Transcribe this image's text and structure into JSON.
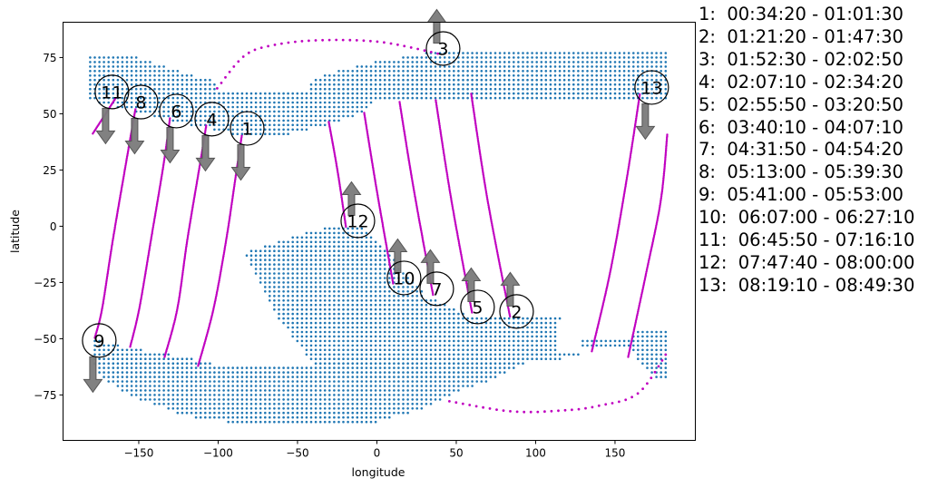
{
  "chart_data": {
    "type": "scatter",
    "title": "",
    "xlabel": "longitude",
    "ylabel": "latitude",
    "xlim": [
      -197.7,
      200.6
    ],
    "ylim": [
      -95.2,
      90.7
    ],
    "xticks": [
      -150,
      -100,
      -50,
      0,
      50,
      100,
      150
    ],
    "xtick_labels": [
      "−150",
      "−100",
      "−50",
      "0",
      "50",
      "100",
      "150"
    ],
    "yticks": [
      75,
      50,
      25,
      0,
      -25,
      -50,
      -75
    ],
    "ytick_labels": [
      "75",
      "50",
      "25",
      "0",
      "−25",
      "−50",
      "−75"
    ],
    "grid": false,
    "colors": {
      "grid_points": "#1f77b4",
      "track": "#c000c0",
      "arrow": "#7a7a7a"
    },
    "grid_points": {
      "step": [
        2.9,
        2.0
      ],
      "regions": [
        [
          [
            -181,
            77
          ],
          [
            -150,
            75
          ],
          [
            -130,
            70
          ],
          [
            -100,
            64
          ],
          [
            -100,
            60
          ],
          [
            -45,
            60
          ],
          [
            -40,
            66
          ],
          [
            -10,
            72
          ],
          [
            30,
            77
          ],
          [
            60,
            79
          ],
          [
            183,
            79
          ],
          [
            183,
            57
          ],
          [
            100,
            55
          ],
          [
            0,
            57
          ],
          [
            -8,
            50
          ],
          [
            -26,
            46
          ],
          [
            -65,
            39
          ],
          [
            -93,
            41
          ],
          [
            -123,
            46
          ],
          [
            -160,
            52
          ],
          [
            -181,
            56
          ]
        ],
        [
          [
            -84,
            -12
          ],
          [
            -40,
            -2
          ],
          [
            -31,
            0
          ],
          [
            -9,
            0
          ],
          [
            -5,
            -4
          ],
          [
            10,
            -14
          ],
          [
            31,
            -31
          ],
          [
            55,
            -39
          ],
          [
            124,
            -39
          ],
          [
            113,
            -42
          ],
          [
            113,
            -56
          ],
          [
            127,
            -56
          ],
          [
            127,
            -58
          ],
          [
            93,
            -61
          ],
          [
            70,
            -69
          ],
          [
            50,
            -74
          ],
          [
            26,
            -82
          ],
          [
            0,
            -87
          ],
          [
            -96,
            -87
          ],
          [
            -123,
            -84
          ],
          [
            -134,
            -81
          ],
          [
            -151,
            -77
          ],
          [
            -171,
            -69
          ],
          [
            -178,
            -62
          ],
          [
            -181,
            -49
          ],
          [
            -163,
            -53
          ],
          [
            -123,
            -58
          ],
          [
            -97,
            -62
          ],
          [
            -40,
            -62
          ],
          [
            -45,
            -57
          ],
          [
            -66,
            -37
          ]
        ],
        [
          [
            127,
            -50
          ],
          [
            160,
            -50
          ],
          [
            165,
            -45
          ],
          [
            183,
            -47
          ],
          [
            183,
            -67
          ],
          [
            175,
            -67
          ],
          [
            165,
            -60
          ],
          [
            160,
            -54
          ],
          [
            127,
            -54
          ]
        ]
      ]
    },
    "tracks": [
      {
        "style": "dense",
        "points": [
          [
            -177.7,
            -49.6
          ],
          [
            -173.1,
            -36.7
          ],
          [
            -166.3,
            -6.0
          ],
          [
            -157.1,
            31.9
          ],
          [
            -152,
            52.4
          ]
        ]
      },
      {
        "style": "dense",
        "points": [
          [
            -155.4,
            -53.6
          ],
          [
            -149.7,
            -36.7
          ],
          [
            -142.3,
            -6.0
          ],
          [
            -134.3,
            27.8
          ],
          [
            -130.3,
            48.4
          ]
        ]
      },
      {
        "style": "dense",
        "points": [
          [
            -133.7,
            -58.1
          ],
          [
            -125.7,
            -36.7
          ],
          [
            -119.4,
            -6.0
          ],
          [
            -111.4,
            27.8
          ],
          [
            -107.4,
            45.2
          ]
        ]
      },
      {
        "style": "dense",
        "points": [
          [
            -112.6,
            -62.1
          ],
          [
            -102.9,
            -36.7
          ],
          [
            -94.9,
            -6.0
          ],
          [
            -88.6,
            23.8
          ],
          [
            -85.1,
            40.3
          ]
        ]
      },
      {
        "style": "dense",
        "points": [
          [
            -164.6,
            56.9
          ],
          [
            -179.4,
            40.7
          ]
        ]
      },
      {
        "style": "sparse",
        "points": [
          [
            -100.6,
            61.3
          ],
          [
            -83.4,
            75.8
          ],
          [
            -64.6,
            80.6
          ],
          [
            -36,
            82.7
          ],
          [
            2.3,
            81.9
          ],
          [
            40,
            76.5
          ]
        ]
      },
      {
        "style": "dense",
        "points": [
          [
            -30.3,
            46.4
          ],
          [
            -24.6,
            23.8
          ],
          [
            -19.4,
            -0.8
          ]
        ]
      },
      {
        "style": "dense",
        "points": [
          [
            -8,
            50.4
          ],
          [
            0,
            15.7
          ],
          [
            10.3,
            -25.8
          ]
        ]
      },
      {
        "style": "dense",
        "points": [
          [
            14.3,
            55.2
          ],
          [
            23.4,
            15.7
          ],
          [
            35.4,
            -30.6
          ]
        ]
      },
      {
        "style": "dense",
        "points": [
          [
            37.1,
            56
          ],
          [
            46.9,
            11.7
          ],
          [
            60,
            -38.7
          ]
        ]
      },
      {
        "style": "dense",
        "points": [
          [
            59.4,
            58.9
          ],
          [
            69.7,
            11.7
          ],
          [
            84,
            -40.7
          ]
        ]
      },
      {
        "style": "dense",
        "points": [
          [
            135.4,
            -55.6
          ],
          [
            146.9,
            -20.6
          ],
          [
            157.1,
            19.8
          ],
          [
            165.7,
            58.9
          ]
        ]
      },
      {
        "style": "dense",
        "points": [
          [
            158.3,
            -58.1
          ],
          [
            169.7,
            -20.6
          ],
          [
            178.9,
            11.7
          ],
          [
            182.9,
            40.7
          ]
        ]
      },
      {
        "style": "sparse",
        "points": [
          [
            45.7,
            -77.8
          ],
          [
            84.6,
            -82.3
          ],
          [
            117,
            -81.9
          ],
          [
            140,
            -79.8
          ],
          [
            164.6,
            -74.2
          ],
          [
            182.9,
            -56
          ]
        ]
      }
    ],
    "annotations": [
      {
        "label": "1",
        "lon": -81.7,
        "lat": 43.5,
        "arrow": "down"
      },
      {
        "label": "2",
        "lon": 88,
        "lat": -37.9,
        "arrow": "up"
      },
      {
        "label": "3",
        "lon": 41.7,
        "lat": 79,
        "arrow": "up"
      },
      {
        "label": "4",
        "lon": -104,
        "lat": 47.6,
        "arrow": "down"
      },
      {
        "label": "5",
        "lon": 63.4,
        "lat": -35.9,
        "arrow": "up"
      },
      {
        "label": "6",
        "lon": -126.3,
        "lat": 51.2,
        "arrow": "down"
      },
      {
        "label": "7",
        "lon": 37.7,
        "lat": -27.8,
        "arrow": "up"
      },
      {
        "label": "8",
        "lon": -148.6,
        "lat": 55.2,
        "arrow": "down"
      },
      {
        "label": "9",
        "lon": -174.9,
        "lat": -50.8,
        "arrow": "down"
      },
      {
        "label": "10",
        "lon": 17.1,
        "lat": -23,
        "arrow": "up"
      },
      {
        "label": "11",
        "lon": -166.9,
        "lat": 59.7,
        "arrow": "down"
      },
      {
        "label": "12",
        "lon": -12,
        "lat": 2.4,
        "arrow": "up"
      },
      {
        "label": "13",
        "lon": 173.1,
        "lat": 61.7,
        "arrow": "down"
      }
    ],
    "legend": [
      "1:  00:34:20 - 01:01:30",
      "2:  01:21:20 - 01:47:30",
      "3:  01:52:30 - 02:02:50",
      "4:  02:07:10 - 02:34:20",
      "5:  02:55:50 - 03:20:50",
      "6:  03:40:10 - 04:07:10",
      "7:  04:31:50 - 04:54:20",
      "8:  05:13:00 - 05:39:30",
      "9:  05:41:00 - 05:53:00",
      "10:  06:07:00 - 06:27:10",
      "11:  06:45:50 - 07:16:10",
      "12:  07:47:40 - 08:00:00",
      "13:  08:19:10 - 08:49:30"
    ]
  }
}
